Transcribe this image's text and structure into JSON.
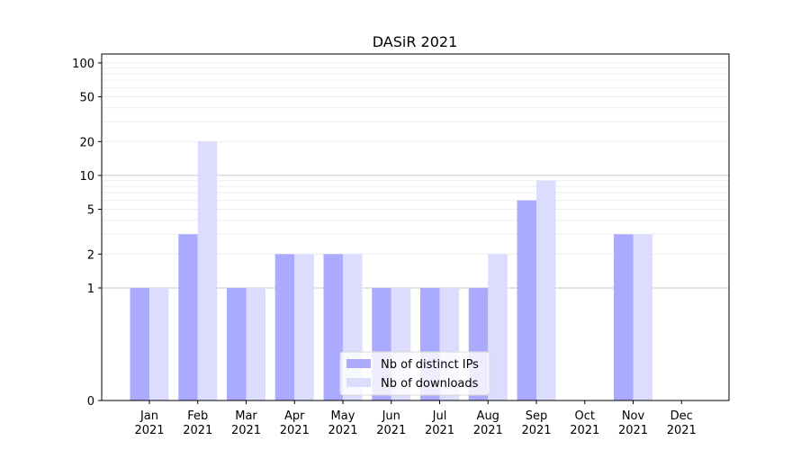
{
  "chart_data": {
    "type": "bar",
    "title": "DASiR 2021",
    "xlabel": "",
    "ylabel": "",
    "y_scale": "symlog",
    "ylim": [
      0,
      120
    ],
    "y_ticks": [
      "0",
      "1",
      "2",
      "5",
      "10",
      "20",
      "50",
      "100"
    ],
    "categories": [
      "Jan\n2021",
      "Feb\n2021",
      "Mar\n2021",
      "Apr\n2021",
      "May\n2021",
      "Jun\n2021",
      "Jul\n2021",
      "Aug\n2021",
      "Sep\n2021",
      "Oct\n2021",
      "Nov\n2021",
      "Dec\n2021"
    ],
    "series": [
      {
        "name": "Nb of distinct IPs",
        "color": "#aaaaff",
        "values": [
          1,
          3,
          1,
          2,
          2,
          1,
          1,
          1,
          6,
          0,
          3,
          0
        ]
      },
      {
        "name": "Nb of downloads",
        "color": "#dcdcff",
        "values": [
          1,
          20,
          1,
          2,
          2,
          1,
          1,
          2,
          9,
          0,
          3,
          0
        ]
      }
    ],
    "grid": "horizontal",
    "legend": "bottom-center"
  }
}
